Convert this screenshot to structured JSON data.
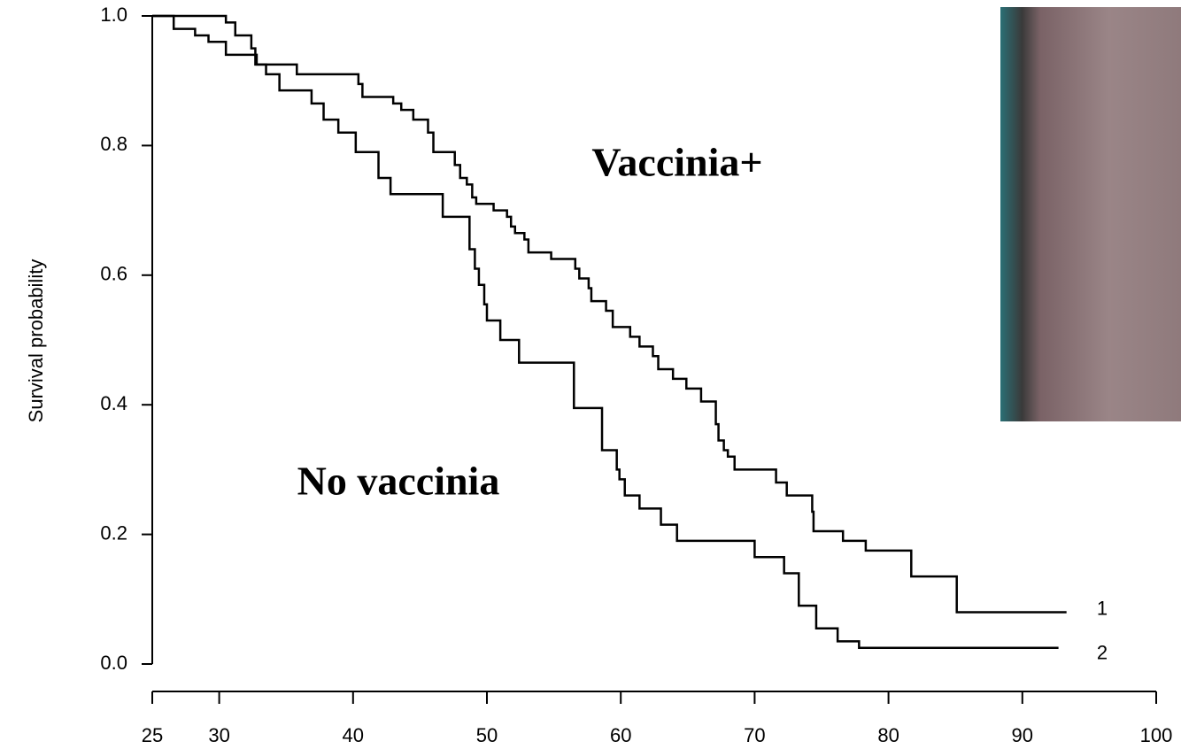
{
  "chart_data": {
    "type": "step",
    "y_label": "Survival probability",
    "annotations": [
      "Vaccinia+",
      "No vaccinia"
    ],
    "xlim": [
      25,
      100
    ],
    "xticks": [
      25,
      30,
      40,
      50,
      60,
      70,
      80,
      90,
      100
    ],
    "ylim": [
      0,
      1
    ],
    "yticks": [
      {
        "value": 0,
        "label": "0.0"
      },
      0.2,
      0.4,
      0.6,
      0.8,
      {
        "value": 1,
        "label": "1.0"
      }
    ],
    "series": [
      {
        "name": "1",
        "color": "#000000",
        "x": [
          25,
          30.5,
          31.2,
          32.4,
          32.7,
          35.8,
          40.4,
          40.7,
          43,
          43.6,
          44.5,
          45.6,
          46,
          47.6,
          48,
          48.5,
          48.9,
          49.2,
          50.5,
          51.5,
          51.8,
          52.1,
          52.8,
          53.1,
          54.8,
          56.6,
          56.9,
          57.6,
          57.8,
          58.9,
          59.4,
          60.7,
          61.4,
          62.4,
          62.8,
          63.9,
          64.9,
          66,
          67.1,
          67.3,
          67.7,
          68,
          68.5,
          71.6,
          72.4,
          74.3,
          74.4,
          76.6,
          78.3,
          81.7,
          85.1,
          93.3
        ],
        "values": [
          1.0,
          0.99,
          0.97,
          0.95,
          0.925,
          0.91,
          0.895,
          0.875,
          0.865,
          0.855,
          0.84,
          0.82,
          0.79,
          0.77,
          0.75,
          0.74,
          0.72,
          0.71,
          0.7,
          0.69,
          0.675,
          0.665,
          0.655,
          0.635,
          0.625,
          0.61,
          0.595,
          0.58,
          0.56,
          0.545,
          0.52,
          0.505,
          0.49,
          0.475,
          0.455,
          0.44,
          0.425,
          0.405,
          0.37,
          0.345,
          0.33,
          0.32,
          0.3,
          0.28,
          0.26,
          0.235,
          0.205,
          0.19,
          0.175,
          0.135,
          0.08,
          0.08
        ]
      },
      {
        "name": "2",
        "color": "#000000",
        "x": [
          25,
          26.6,
          28.2,
          29.2,
          30.5,
          32.8,
          33.5,
          34.5,
          36.9,
          37.8,
          38.9,
          40.2,
          41.9,
          42.8,
          46.7,
          48.7,
          49.1,
          49.4,
          49.8,
          50,
          51,
          52.4,
          56.5,
          58.6,
          59.7,
          59.9,
          60.3,
          61.4,
          63,
          64.2,
          70,
          72.2,
          73.3,
          74.6,
          76.2,
          77.8,
          92.7
        ],
        "values": [
          1.0,
          0.98,
          0.97,
          0.96,
          0.94,
          0.925,
          0.91,
          0.885,
          0.865,
          0.84,
          0.82,
          0.79,
          0.75,
          0.725,
          0.69,
          0.64,
          0.61,
          0.585,
          0.555,
          0.53,
          0.5,
          0.465,
          0.395,
          0.33,
          0.3,
          0.285,
          0.26,
          0.24,
          0.215,
          0.19,
          0.165,
          0.14,
          0.09,
          0.055,
          0.035,
          0.025,
          0.025
        ]
      }
    ]
  }
}
